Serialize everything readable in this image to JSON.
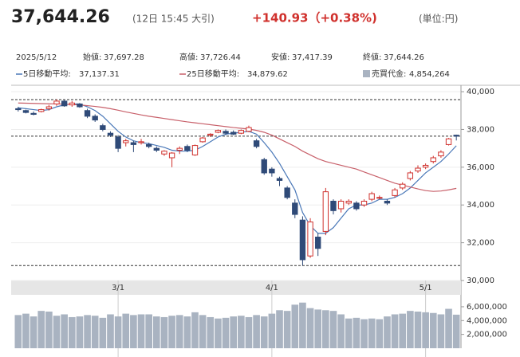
{
  "header": {
    "price": "37,644.26",
    "time": "(12日 15:45 大引)",
    "change": "+140.93（+0.38%)",
    "unit": "(単位:円)"
  },
  "info": {
    "date": "2025/5/12",
    "items": [
      {
        "label": "始値:",
        "value": "37,697.28"
      },
      {
        "label": "高値:",
        "value": "37,726.44"
      },
      {
        "label": "安値:",
        "value": "37,417.39"
      },
      {
        "label": "終値:",
        "value": "37,644.26"
      }
    ]
  },
  "chart_data": [
    {
      "type": "candlestick",
      "up_color": "#d0312d",
      "down_color": "#2f4a78",
      "categories": [
        null,
        null,
        null,
        null,
        null,
        null,
        null,
        null,
        null,
        null,
        null,
        null,
        null,
        "3/1",
        null,
        null,
        null,
        null,
        null,
        null,
        null,
        null,
        null,
        null,
        null,
        null,
        null,
        null,
        null,
        null,
        null,
        null,
        null,
        "4/1",
        null,
        null,
        null,
        null,
        null,
        null,
        null,
        null,
        null,
        null,
        null,
        null,
        null,
        null,
        null,
        null,
        null,
        null,
        null,
        "5/1",
        null,
        null,
        null,
        null
      ],
      "open": [
        39100,
        39000,
        38850,
        38950,
        39100,
        39350,
        39500,
        39300,
        39350,
        39000,
        38700,
        38200,
        37800,
        37600,
        37300,
        37300,
        37300,
        37200,
        37000,
        36700,
        36500,
        36900,
        37100,
        36650,
        37350,
        37700,
        37850,
        37900,
        37850,
        37800,
        37900,
        37400,
        36400,
        35900,
        35400,
        34900,
        34100,
        33200,
        31300,
        32300,
        32600,
        34200,
        33800,
        34100,
        34100,
        34000,
        34300,
        34400,
        34200,
        34500,
        34900,
        35400,
        35800,
        36000,
        36300,
        36600,
        37200,
        37697.28
      ],
      "high": [
        39200,
        39050,
        38950,
        39100,
        39300,
        39600,
        39550,
        39500,
        39400,
        39100,
        38800,
        38300,
        37900,
        37700,
        37500,
        37400,
        37500,
        37300,
        37100,
        36900,
        36800,
        37100,
        37200,
        37200,
        37600,
        37800,
        38000,
        38000,
        37950,
        38000,
        38200,
        37500,
        36500,
        36000,
        35500,
        35000,
        34300,
        33400,
        33300,
        32500,
        34900,
        34300,
        34300,
        34300,
        34200,
        34300,
        34700,
        34500,
        34300,
        34900,
        35200,
        35800,
        36100,
        36200,
        36600,
        36900,
        37550,
        37726.44
      ],
      "low": [
        38950,
        38850,
        38750,
        38900,
        39000,
        39250,
        39200,
        39200,
        39150,
        38600,
        38400,
        37900,
        37600,
        36800,
        37100,
        36800,
        37200,
        37000,
        36800,
        36600,
        36000,
        36700,
        36800,
        36600,
        37300,
        37600,
        37800,
        37700,
        37700,
        37750,
        37850,
        37000,
        35600,
        35500,
        35000,
        34300,
        33300,
        30792,
        31200,
        31300,
        32400,
        33500,
        33600,
        34000,
        33700,
        33900,
        34200,
        34300,
        34000,
        34400,
        34800,
        35300,
        35700,
        35900,
        36200,
        36500,
        37150,
        37417.39
      ],
      "close": [
        39050,
        38900,
        38800,
        39050,
        39200,
        39500,
        39250,
        39400,
        39200,
        38700,
        38500,
        38000,
        37700,
        37000,
        37400,
        37200,
        37350,
        37100,
        36900,
        36850,
        36750,
        37000,
        36900,
        37150,
        37550,
        37750,
        37950,
        37800,
        37750,
        37950,
        38100,
        37100,
        35700,
        35700,
        35300,
        34400,
        33500,
        31100,
        33100,
        31700,
        34700,
        33700,
        34200,
        34200,
        33800,
        34200,
        34600,
        34400,
        34100,
        34800,
        35100,
        35700,
        35950,
        36100,
        36500,
        36800,
        37503,
        37644.26
      ],
      "series": [
        {
          "name": "5日移動平均:",
          "last_label": "37,137.31",
          "color": "#4a78b8",
          "values": [
            39150,
            39100,
            39050,
            39000,
            39050,
            39200,
            39300,
            39350,
            39350,
            39200,
            39000,
            38700,
            38300,
            37900,
            37600,
            37400,
            37300,
            37250,
            37150,
            37050,
            36900,
            36850,
            36850,
            36900,
            37100,
            37350,
            37600,
            37750,
            37800,
            37850,
            37900,
            37750,
            37300,
            36800,
            36200,
            35500,
            34800,
            33600,
            32900,
            32500,
            32500,
            32800,
            33300,
            33800,
            34000,
            34000,
            34100,
            34300,
            34300,
            34400,
            34600,
            34900,
            35300,
            35700,
            36000,
            36300,
            36700,
            37137.31
          ]
        },
        {
          "name": "25日移動平均:",
          "last_label": "34,879.62",
          "color": "#c8606a",
          "values": [
            39400,
            39390,
            39380,
            39370,
            39360,
            39350,
            39340,
            39320,
            39300,
            39260,
            39220,
            39170,
            39100,
            39020,
            38930,
            38850,
            38770,
            38700,
            38640,
            38580,
            38520,
            38460,
            38400,
            38350,
            38300,
            38250,
            38200,
            38150,
            38100,
            38060,
            38020,
            37950,
            37850,
            37700,
            37500,
            37300,
            37100,
            36850,
            36650,
            36450,
            36300,
            36200,
            36100,
            36000,
            35900,
            35750,
            35600,
            35450,
            35300,
            35150,
            35050,
            34950,
            34850,
            34760,
            34720,
            34740,
            34800,
            34879.62
          ]
        }
      ],
      "reference_lines": [
        39580,
        37644.26,
        30792
      ],
      "ylim": [
        30000,
        40340
      ],
      "yticks": [
        {
          "value": 30000,
          "label": "30,000"
        },
        {
          "value": 32000,
          "label": "32,000"
        },
        {
          "value": 34000,
          "label": "34,000"
        },
        {
          "value": 36000,
          "label": "36,000"
        },
        {
          "value": 38000,
          "label": "38,000"
        },
        {
          "value": 40000,
          "label": "40,000"
        }
      ],
      "grid": true
    },
    {
      "type": "bar",
      "name": "売買代金:",
      "last_label": "4,854,264",
      "color": "#a9b3c1",
      "values": [
        4800000,
        5000000,
        4600000,
        5400000,
        5300000,
        4700000,
        4900000,
        4500000,
        4600000,
        4800000,
        4700000,
        4400000,
        4900000,
        4600000,
        5000000,
        4800000,
        4900000,
        4900000,
        4600000,
        4500000,
        4700000,
        4800000,
        4600000,
        5200000,
        4800000,
        4500000,
        4300000,
        4400000,
        4600000,
        4700000,
        4500000,
        4800000,
        4600000,
        5000000,
        5500000,
        5400000,
        6300000,
        6600000,
        5800000,
        5600000,
        5500000,
        5400000,
        4900000,
        4300000,
        4400000,
        4200000,
        4300000,
        4200000,
        4600000,
        4900000,
        5000000,
        5400000,
        5300000,
        5200000,
        5100000,
        4900000,
        5700000,
        4854264
      ],
      "ylim": [
        0,
        6800000
      ],
      "yticks": [
        {
          "value": 2000000,
          "label": "2,000,000"
        },
        {
          "value": 4000000,
          "label": "4,000,000"
        },
        {
          "value": 6000000,
          "label": "6,000,000"
        }
      ]
    }
  ]
}
